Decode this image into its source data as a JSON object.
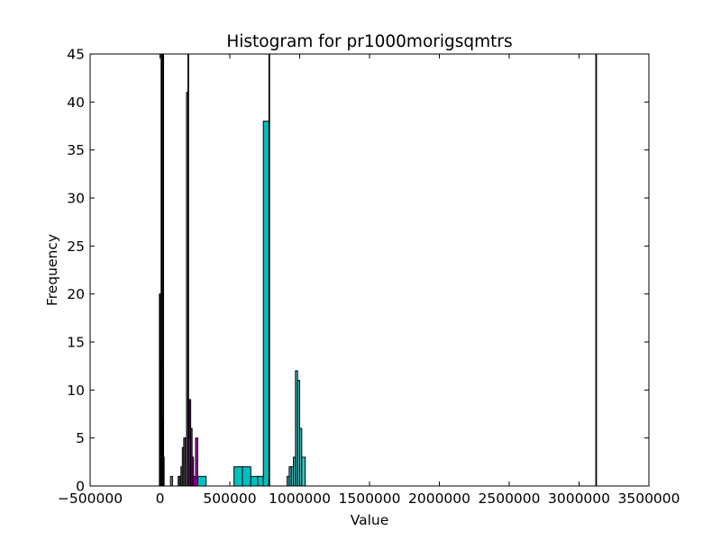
{
  "chart_data": {
    "type": "bar",
    "title": "Histogram for pr1000morigsqmtrs",
    "xlabel": "Value",
    "ylabel": "Frequency",
    "xlim": [
      -500000,
      3500000
    ],
    "ylim": [
      0,
      45
    ],
    "xticks": [
      -500000,
      0,
      500000,
      1000000,
      1500000,
      2000000,
      2500000,
      3000000,
      3500000
    ],
    "xtick_labels": [
      "−500000",
      "0",
      "500000",
      "1000000",
      "1500000",
      "2000000",
      "2500000",
      "3000000",
      "3500000"
    ],
    "yticks": [
      0,
      5,
      10,
      15,
      20,
      25,
      30,
      35,
      40,
      45
    ],
    "ytick_labels": [
      "0",
      "5",
      "10",
      "15",
      "20",
      "25",
      "30",
      "35",
      "40",
      "45"
    ],
    "grid": false,
    "legend": "none",
    "series": [
      {
        "color": "#000000",
        "bins": [
          {
            "x0": -4000,
            "x1": 2000,
            "count": 20
          },
          {
            "x0": 2000,
            "x1": 8000,
            "count": 13
          },
          {
            "x0": 8000,
            "x1": 14000,
            "count": 45
          },
          {
            "x0": 14000,
            "x1": 20000,
            "count": 7
          },
          {
            "x0": 20000,
            "x1": 26000,
            "count": 45
          },
          {
            "x0": 26000,
            "x1": 30000,
            "count": 3
          }
        ]
      },
      {
        "color": "#808080",
        "bins": [
          {
            "x0": 75000,
            "x1": 90000,
            "count": 1
          },
          {
            "x0": 130000,
            "x1": 140000,
            "count": 1
          },
          {
            "x0": 140000,
            "x1": 150000,
            "count": 1
          },
          {
            "x0": 150000,
            "x1": 160000,
            "count": 2
          },
          {
            "x0": 160000,
            "x1": 170000,
            "count": 4
          },
          {
            "x0": 170000,
            "x1": 180000,
            "count": 5
          },
          {
            "x0": 180000,
            "x1": 190000,
            "count": 5
          },
          {
            "x0": 190000,
            "x1": 200000,
            "count": 41
          },
          {
            "x0": 200000,
            "x1": 205000,
            "count": 45
          },
          {
            "x0": 205000,
            "x1": 215000,
            "count": 8
          }
        ]
      },
      {
        "color": "#bf00bf",
        "bins": [
          {
            "x0": 200000,
            "x1": 210000,
            "count": 5
          },
          {
            "x0": 210000,
            "x1": 220000,
            "count": 9
          },
          {
            "x0": 220000,
            "x1": 230000,
            "count": 6
          },
          {
            "x0": 230000,
            "x1": 240000,
            "count": 3
          },
          {
            "x0": 240000,
            "x1": 255000,
            "count": 1
          },
          {
            "x0": 255000,
            "x1": 270000,
            "count": 5
          }
        ]
      },
      {
        "color": "#00bfbf",
        "bins": [
          {
            "x0": 270000,
            "x1": 330000,
            "count": 1
          },
          {
            "x0": 530000,
            "x1": 590000,
            "count": 2
          },
          {
            "x0": 590000,
            "x1": 650000,
            "count": 2
          },
          {
            "x0": 650000,
            "x1": 700000,
            "count": 1
          },
          {
            "x0": 700000,
            "x1": 740000,
            "count": 1
          },
          {
            "x0": 740000,
            "x1": 780000,
            "count": 38
          },
          {
            "x0": 780000,
            "x1": 785000,
            "count": 45
          }
        ]
      },
      {
        "color": "#40c0c0",
        "bins": [
          {
            "x0": 910000,
            "x1": 925000,
            "count": 1
          },
          {
            "x0": 925000,
            "x1": 940000,
            "count": 2
          },
          {
            "x0": 940000,
            "x1": 955000,
            "count": 2
          },
          {
            "x0": 955000,
            "x1": 970000,
            "count": 3
          },
          {
            "x0": 970000,
            "x1": 985000,
            "count": 12
          },
          {
            "x0": 985000,
            "x1": 1000000,
            "count": 11
          },
          {
            "x0": 1000000,
            "x1": 1015000,
            "count": 6
          },
          {
            "x0": 1015000,
            "x1": 1040000,
            "count": 3
          }
        ]
      },
      {
        "color": "#000000",
        "bins": [
          {
            "x0": 3120000,
            "x1": 3125000,
            "count": 45
          }
        ]
      }
    ]
  }
}
